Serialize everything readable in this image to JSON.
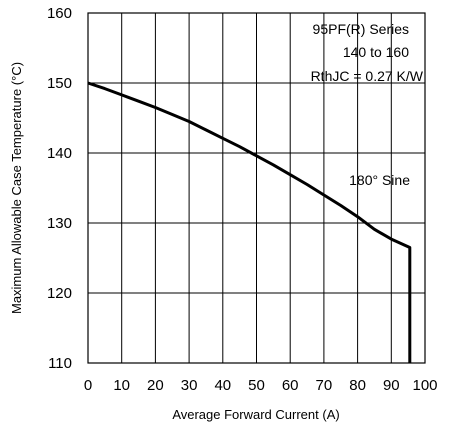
{
  "chart_data": {
    "type": "line",
    "xlabel": "Average Forward Current (A)",
    "ylabel": "Maximum Allowable Case Temperature (°C)",
    "xlim": [
      0,
      100
    ],
    "ylim": [
      110,
      160
    ],
    "xticks": [
      0,
      10,
      20,
      30,
      40,
      50,
      60,
      70,
      80,
      90,
      100
    ],
    "yticks": [
      110,
      120,
      130,
      140,
      150,
      160
    ],
    "grid": true,
    "series": [
      {
        "x": [
          0,
          5,
          10,
          15,
          20,
          25,
          30,
          35,
          40,
          45,
          50,
          55,
          60,
          65,
          70,
          75,
          80,
          85,
          90,
          95.5,
          95.5
        ],
        "y": [
          150,
          149.2,
          148.3,
          147.4,
          146.5,
          145.5,
          144.5,
          143.3,
          142.1,
          140.9,
          139.6,
          138.3,
          136.9,
          135.5,
          134.0,
          132.5,
          130.9,
          129.1,
          127.7,
          126.5,
          110
        ]
      }
    ],
    "annotations": [
      {
        "text": "95PF(R) Series"
      },
      {
        "text": "140 to 160"
      },
      {
        "text": "RthJC = 0.27 K/W"
      },
      {
        "text": "180° Sine"
      }
    ]
  }
}
